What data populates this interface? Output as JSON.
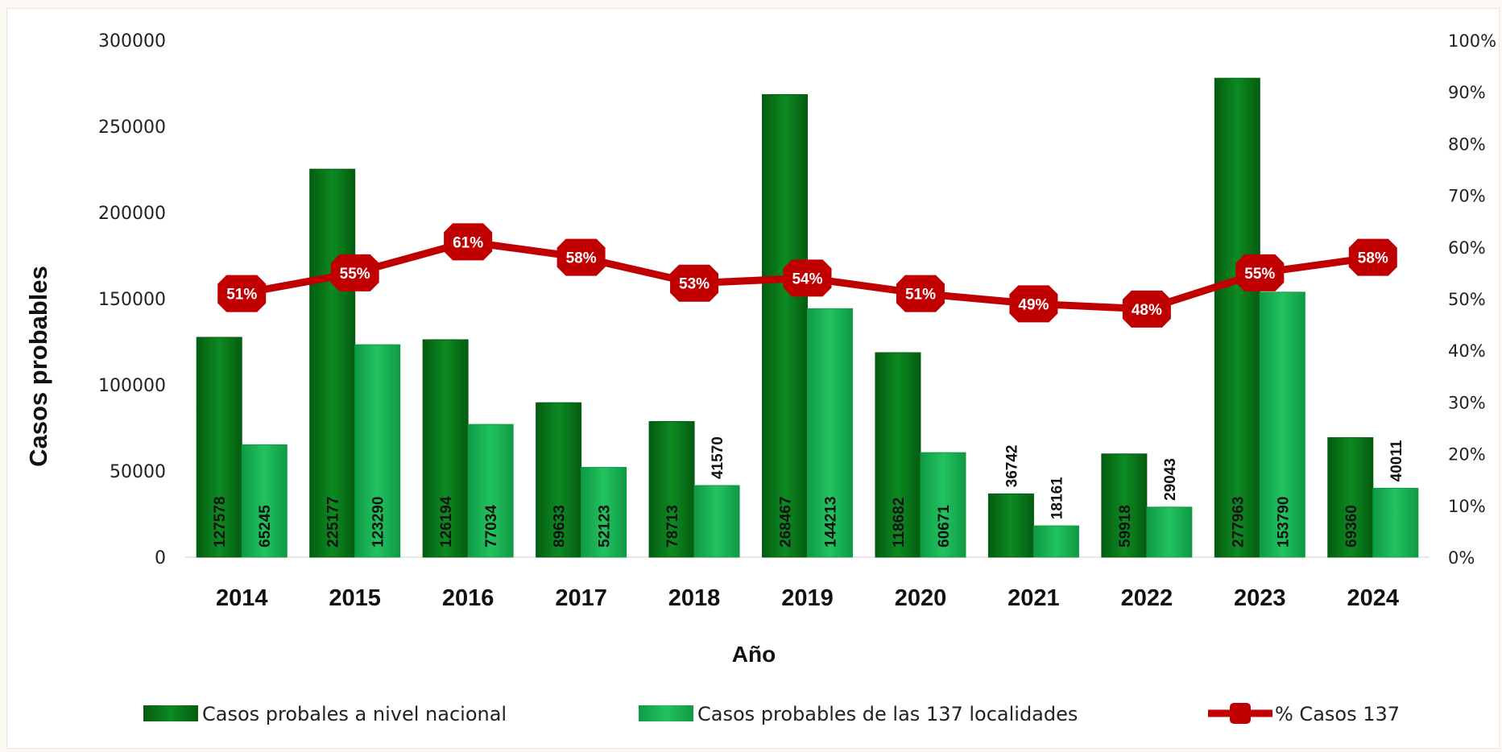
{
  "chart_data": {
    "type": "bar",
    "categories": [
      "2014",
      "2015",
      "2016",
      "2017",
      "2018",
      "2019",
      "2020",
      "2021",
      "2022",
      "2023",
      "2024"
    ],
    "series": [
      {
        "name": "Casos probales a nivel nacional",
        "values": [
          127578,
          225177,
          126194,
          89633,
          78713,
          268467,
          118682,
          36742,
          59918,
          277963,
          69360
        ],
        "color": "#0a7a1a"
      },
      {
        "name": "Casos probables de las 137 localidades",
        "values": [
          65245,
          123290,
          77034,
          52123,
          41570,
          144213,
          60671,
          18161,
          29043,
          153790,
          40011
        ],
        "color": "#1db457"
      },
      {
        "name": "% Casos 137",
        "values": [
          51,
          55,
          61,
          58,
          53,
          54,
          51,
          49,
          48,
          55,
          58
        ],
        "labels": [
          "51%",
          "55%",
          "61%",
          "58%",
          "53%",
          "54%",
          "51%",
          "49%",
          "48%",
          "55%",
          "58%"
        ],
        "color": "#c00000",
        "axis": "right"
      }
    ],
    "xlabel": "Año",
    "ylabel": "Casos probables",
    "ylim": [
      0,
      300000
    ],
    "y_ticks": [
      "0",
      "50000",
      "100000",
      "150000",
      "200000",
      "250000",
      "300000"
    ],
    "y2lim": [
      0,
      100
    ],
    "y2_ticks": [
      "0%",
      "10%",
      "20%",
      "30%",
      "40%",
      "50%",
      "60%",
      "70%",
      "80%",
      "90%",
      "100%"
    ],
    "legend_position": "bottom",
    "grid": false
  }
}
